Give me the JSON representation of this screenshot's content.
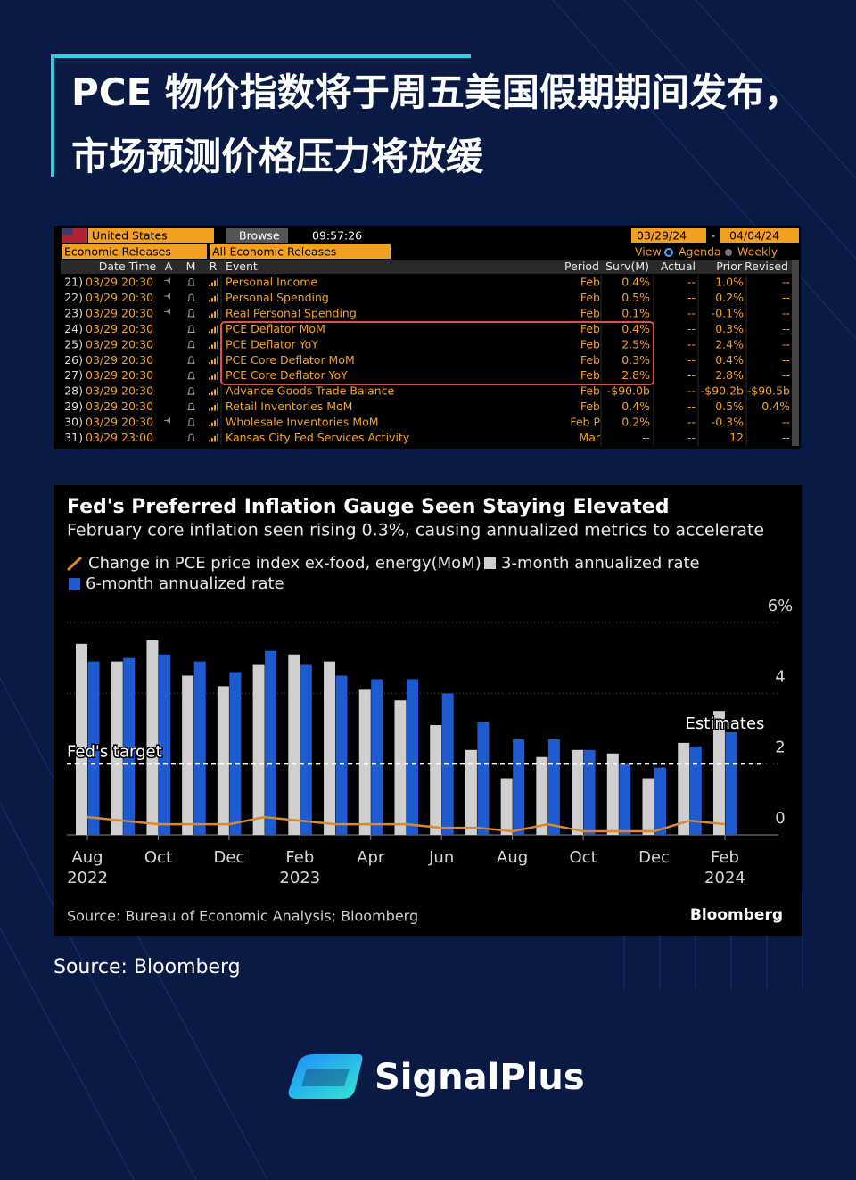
{
  "header": {
    "title": "PCE 物价指数将于周五美国假期期间发布，市场预测价格压力将放缓"
  },
  "terminal": {
    "country": "United States",
    "browse": "Browse",
    "time": "09:57:26",
    "start_date": "03/29/24",
    "date_sep": "-",
    "end_date": "04/04/24",
    "list": "Economic Releases",
    "filter": "All Economic Releases",
    "view": "View",
    "agenda": "Agenda",
    "weekly": "Weekly",
    "columns": [
      "Date Time",
      "A",
      "M",
      "R",
      "Event",
      "Period",
      "Surv(M)",
      "Actual",
      "Prior",
      "Revised"
    ],
    "rows": [
      [
        "21)",
        "03/29 20:30",
        "Personal Income",
        "Feb",
        "0.4%",
        "--",
        "1.0%",
        "--"
      ],
      [
        "22)",
        "03/29 20:30",
        "Personal Spending",
        "Feb",
        "0.5%",
        "--",
        "0.2%",
        "--"
      ],
      [
        "23)",
        "03/29 20:30",
        "Real Personal Spending",
        "Feb",
        "0.1%",
        "--",
        "-0.1%",
        "--"
      ],
      [
        "24)",
        "03/29 20:30",
        "PCE Deflator MoM",
        "Feb",
        "0.4%",
        "--",
        "0.3%",
        "--"
      ],
      [
        "25)",
        "03/29 20:30",
        "PCE Deflator YoY",
        "Feb",
        "2.5%",
        "--",
        "2.4%",
        "--"
      ],
      [
        "26)",
        "03/29 20:30",
        "PCE Core Deflator MoM",
        "Feb",
        "0.3%",
        "--",
        "0.4%",
        "--"
      ],
      [
        "27)",
        "03/29 20:30",
        "PCE Core Deflator YoY",
        "Feb",
        "2.8%",
        "--",
        "2.8%",
        "--"
      ],
      [
        "28)",
        "03/29 20:30",
        "Advance Goods Trade Balance",
        "Feb",
        "-$90.0b",
        "--",
        "-$90.2b",
        "-$90.5b"
      ],
      [
        "29)",
        "03/29 20:30",
        "Retail Inventories MoM",
        "Feb",
        "0.4%",
        "--",
        "0.5%",
        "0.4%"
      ],
      [
        "30)",
        "03/29 20:30",
        "Wholesale Inventories MoM",
        "Feb P",
        "0.2%",
        "--",
        "-0.3%",
        "--"
      ],
      [
        "31)",
        "03/29 23:00",
        "Kansas City Fed Services Activity",
        "Mar",
        "--",
        "--",
        "12",
        "--"
      ]
    ]
  },
  "chart_data": {
    "type": "bar",
    "title": "Fed's Preferred Inflation Gauge Seen Staying Elevated",
    "subtitle": "February core inflation seen rising 0.3%, causing annualized metrics to accelerate",
    "categories": [
      "Aug 2022",
      null,
      "Oct",
      null,
      "Dec",
      null,
      "Feb 2023",
      null,
      "Apr",
      null,
      "Jun",
      null,
      "Aug",
      null,
      "Oct",
      null,
      "Dec",
      null,
      "Feb 2024"
    ],
    "series": [
      {
        "name": "Change in PCE price index ex-food, energy(MoM)",
        "type": "line",
        "color": "#d9892b",
        "values": [
          0.5,
          0.4,
          0.3,
          0.3,
          0.3,
          0.5,
          0.4,
          0.3,
          0.3,
          0.3,
          0.2,
          0.2,
          0.1,
          0.3,
          0.1,
          0.1,
          0.1,
          0.4,
          0.3
        ]
      },
      {
        "name": "3-month annualized rate",
        "type": "bar",
        "color": "#cfcfcf",
        "values": [
          5.4,
          4.9,
          5.5,
          4.5,
          4.2,
          4.8,
          5.1,
          4.9,
          4.1,
          3.8,
          3.1,
          2.4,
          1.6,
          2.2,
          2.4,
          2.3,
          1.6,
          2.6,
          3.5
        ]
      },
      {
        "name": "6-month annualized rate",
        "type": "bar",
        "color": "#1f5bd0",
        "values": [
          4.9,
          5.0,
          5.1,
          4.9,
          4.6,
          5.2,
          4.8,
          4.5,
          4.4,
          4.4,
          4.0,
          3.2,
          2.7,
          2.7,
          2.4,
          2.0,
          1.9,
          2.5,
          2.9
        ]
      }
    ],
    "ylim": [
      0,
      6
    ],
    "yticks": [
      0,
      2,
      4,
      {
        "value": 6,
        "label": "6%"
      }
    ],
    "target": {
      "label": "Fed's target",
      "value": 2
    },
    "annotation": "Estimates",
    "source": "Source: Bureau of Economic Analysis; Bloomberg",
    "brand": "Bloomberg"
  },
  "source": "Source: Bloomberg",
  "brand": "SignalPlus"
}
